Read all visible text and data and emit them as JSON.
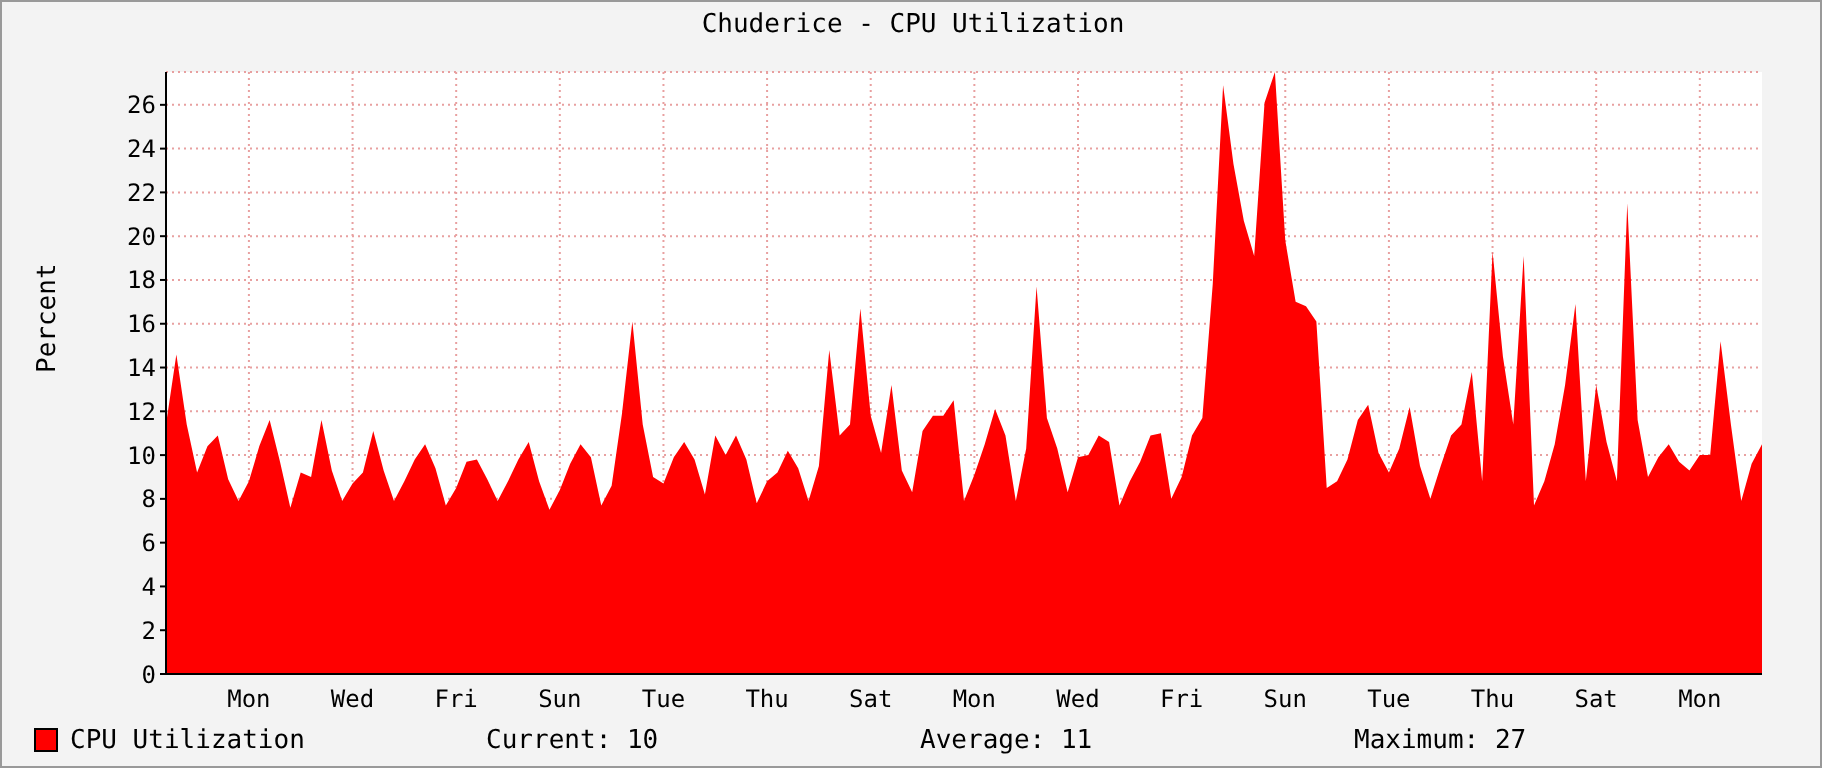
{
  "chart_data": {
    "type": "area",
    "title": "Chuderice - CPU Utilization",
    "ylabel": "Percent",
    "categories": [
      null,
      null,
      null,
      null,
      null,
      null,
      null,
      null,
      "Mon",
      null,
      null,
      null,
      null,
      null,
      null,
      null,
      null,
      null,
      "Wed",
      null,
      null,
      null,
      null,
      null,
      null,
      null,
      null,
      null,
      "Fri",
      null,
      null,
      null,
      null,
      null,
      null,
      null,
      null,
      null,
      "Sun",
      null,
      null,
      null,
      null,
      null,
      null,
      null,
      null,
      null,
      "Tue",
      null,
      null,
      null,
      null,
      null,
      null,
      null,
      null,
      null,
      "Thu",
      null,
      null,
      null,
      null,
      null,
      null,
      null,
      null,
      null,
      "Sat",
      null,
      null,
      null,
      null,
      null,
      null,
      null,
      null,
      null,
      "Mon",
      null,
      null,
      null,
      null,
      null,
      null,
      null,
      null,
      null,
      "Wed",
      null,
      null,
      null,
      null,
      null,
      null,
      null,
      null,
      null,
      "Fri",
      null,
      null,
      null,
      null,
      null,
      null,
      null,
      null,
      null,
      "Sun",
      null,
      null,
      null,
      null,
      null,
      null,
      null,
      null,
      null,
      "Tue",
      null,
      null,
      null,
      null,
      null,
      null,
      null,
      null,
      null,
      "Thu",
      null,
      null,
      null,
      null,
      null,
      null,
      null,
      null,
      null,
      "Sat",
      null,
      null,
      null,
      null,
      null,
      null,
      null,
      null,
      null,
      "Mon",
      null,
      null,
      null,
      null,
      null,
      null
    ],
    "series": [
      {
        "name": "CPU Utilization",
        "color": "#ff0000",
        "values": [
          11.4,
          14.6,
          11.4,
          9.2,
          10.4,
          10.9,
          8.9,
          7.9,
          8.8,
          10.4,
          11.6,
          9.7,
          7.6,
          9.2,
          9.0,
          11.6,
          9.3,
          7.9,
          8.7,
          9.2,
          11.1,
          9.3,
          7.9,
          8.8,
          9.8,
          10.5,
          9.4,
          7.7,
          8.5,
          9.7,
          9.8,
          8.9,
          7.9,
          8.8,
          9.8,
          10.6,
          8.8,
          7.5,
          8.4,
          9.6,
          10.5,
          9.9,
          7.7,
          8.6,
          11.9,
          16.1,
          11.4,
          9.0,
          8.7,
          9.9,
          10.6,
          9.8,
          8.2,
          10.9,
          10.0,
          10.9,
          9.8,
          7.8,
          8.8,
          9.2,
          10.2,
          9.4,
          7.9,
          9.5,
          14.8,
          10.9,
          11.4,
          16.7,
          11.8,
          10.1,
          13.2,
          9.3,
          8.3,
          11.1,
          11.8,
          11.8,
          12.5,
          7.9,
          9.1,
          10.5,
          12.1,
          10.9,
          7.9,
          10.3,
          17.7,
          11.7,
          10.3,
          8.3,
          9.9,
          10.0,
          10.9,
          10.6,
          7.7,
          8.8,
          9.7,
          10.9,
          11.0,
          8.0,
          9.0,
          10.9,
          11.7,
          17.8,
          26.9,
          23.3,
          20.7,
          19.1,
          26.1,
          27.5,
          19.8,
          17.0,
          16.8,
          16.1,
          8.5,
          8.8,
          9.8,
          11.6,
          12.3,
          10.1,
          9.2,
          10.3,
          12.2,
          9.5,
          8.0,
          9.5,
          10.9,
          11.4,
          13.8,
          8.8,
          19.3,
          14.5,
          11.4,
          19.1,
          7.7,
          8.8,
          10.5,
          13.2,
          16.9,
          8.8,
          13.2,
          10.6,
          8.8,
          21.5,
          11.6,
          9.0,
          9.9,
          10.5,
          9.7,
          9.3,
          10.0,
          10.0,
          15.2,
          11.4,
          7.9,
          9.6,
          10.5
        ]
      }
    ],
    "ylim": [
      0,
      27.5
    ],
    "yticks": [
      0,
      2,
      4,
      6,
      8,
      10,
      12,
      14,
      16,
      18,
      20,
      22,
      24,
      26
    ],
    "grid": true,
    "legend": "bottom left",
    "annotations": [
      "Current: 10",
      "Average: 11",
      "Maximum: 27"
    ]
  }
}
